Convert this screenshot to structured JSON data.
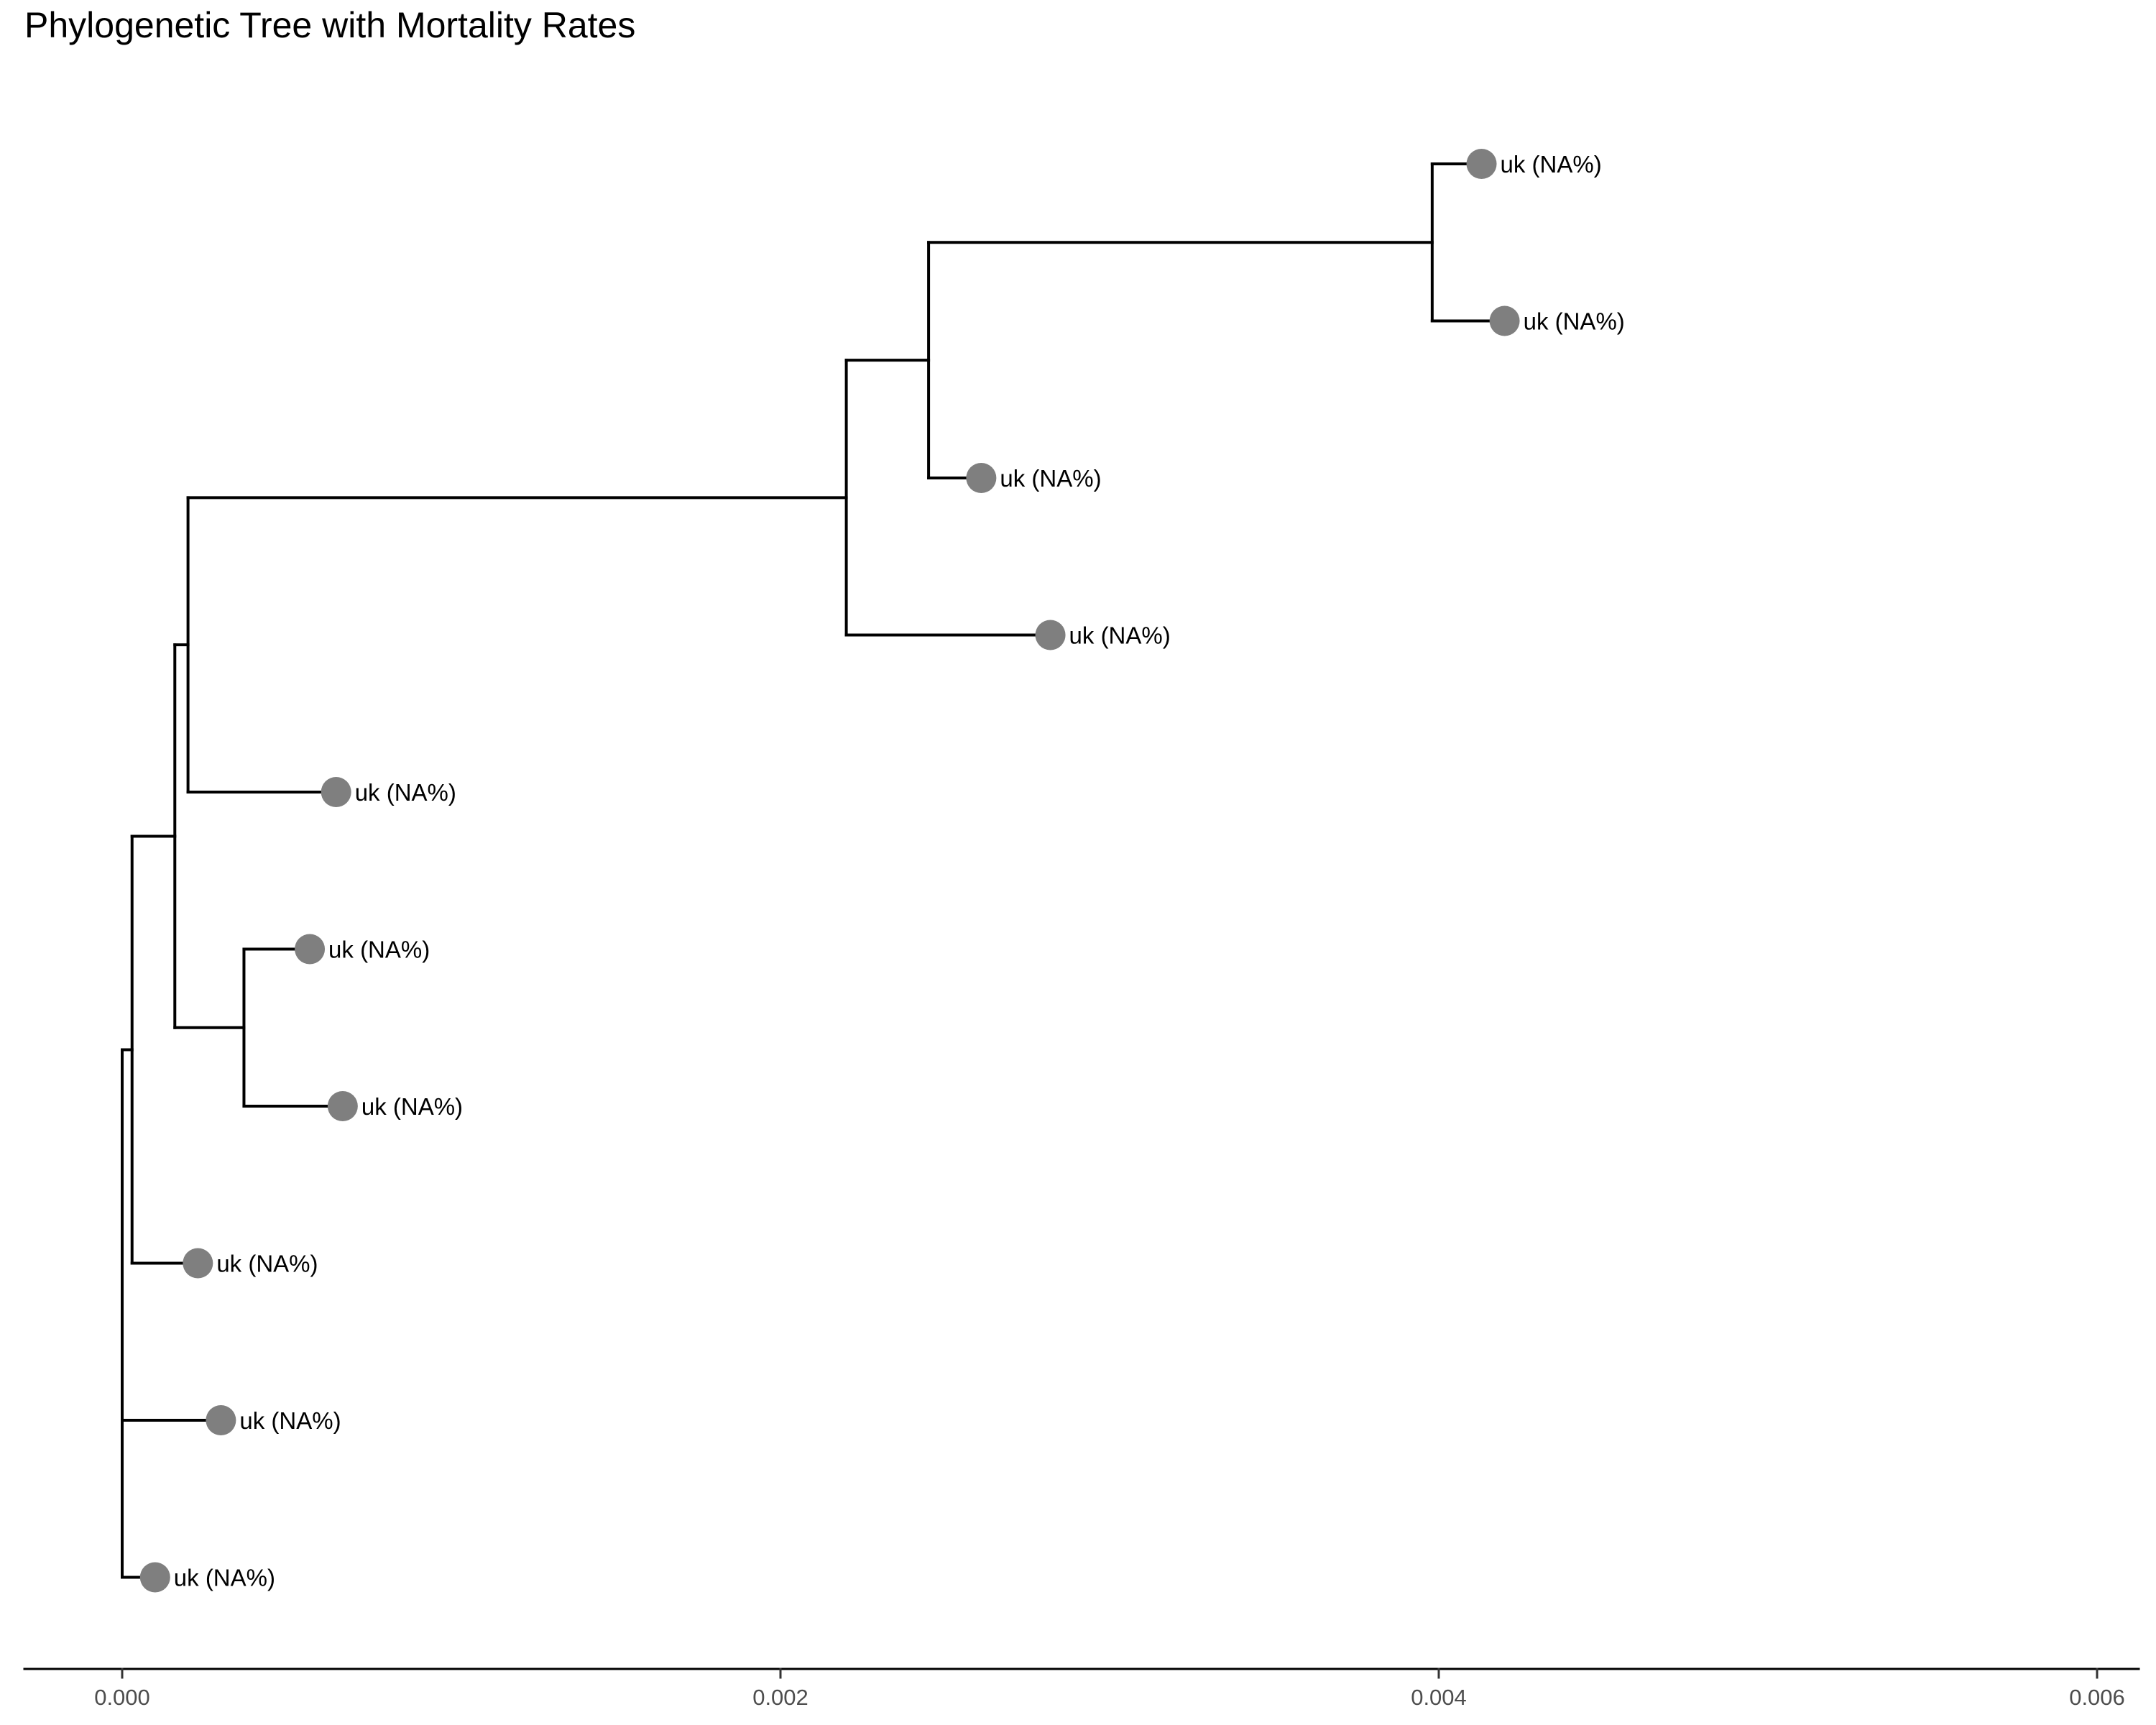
{
  "chart_data": {
    "type": "tree",
    "title": "Phylogenetic Tree with Mortality Rates",
    "xlabel": "",
    "ylabel": "",
    "xlim": [
      -0.0003,
      0.0061
    ],
    "x_ticks": [
      0.0,
      0.002,
      0.004,
      0.006
    ],
    "x_tick_labels": [
      "0.000",
      "0.002",
      "0.004",
      "0.006"
    ],
    "grid": false,
    "tip_color": "#7f7f7f",
    "branch_color": "#000000",
    "internal_nodes": [
      {
        "id": "root",
        "x": 0.0,
        "children": [
          "n1",
          "t10",
          "t9"
        ]
      },
      {
        "id": "n1",
        "x": 3e-05,
        "children": [
          "n2",
          "t8"
        ]
      },
      {
        "id": "n2",
        "x": 0.00016,
        "children": [
          "n3",
          "n6"
        ]
      },
      {
        "id": "n3",
        "x": 0.0002,
        "children": [
          "n4",
          "t5"
        ]
      },
      {
        "id": "n4",
        "x": 0.0022,
        "children": [
          "n5",
          "t4"
        ]
      },
      {
        "id": "n5",
        "x": 0.00245,
        "children": [
          "n7",
          "t3"
        ]
      },
      {
        "id": "n7",
        "x": 0.00398,
        "children": [
          "t1",
          "t2"
        ]
      },
      {
        "id": "n6",
        "x": 0.00037,
        "children": [
          "t6",
          "t7"
        ]
      }
    ],
    "tips": [
      {
        "id": "t1",
        "x": 0.00413,
        "label": "uk (NA%)"
      },
      {
        "id": "t2",
        "x": 0.0042,
        "label": "uk (NA%)"
      },
      {
        "id": "t3",
        "x": 0.00261,
        "label": "uk (NA%)"
      },
      {
        "id": "t4",
        "x": 0.00282,
        "label": "uk (NA%)"
      },
      {
        "id": "t5",
        "x": 0.00065,
        "label": "uk (NA%)"
      },
      {
        "id": "t6",
        "x": 0.00057,
        "label": "uk (NA%)"
      },
      {
        "id": "t7",
        "x": 0.00067,
        "label": "uk (NA%)"
      },
      {
        "id": "t8",
        "x": 0.00023,
        "label": "uk (NA%)"
      },
      {
        "id": "t9",
        "x": 0.0003,
        "label": "uk (NA%)"
      },
      {
        "id": "t10",
        "x": 0.0001,
        "label": "uk (NA%)"
      }
    ]
  }
}
